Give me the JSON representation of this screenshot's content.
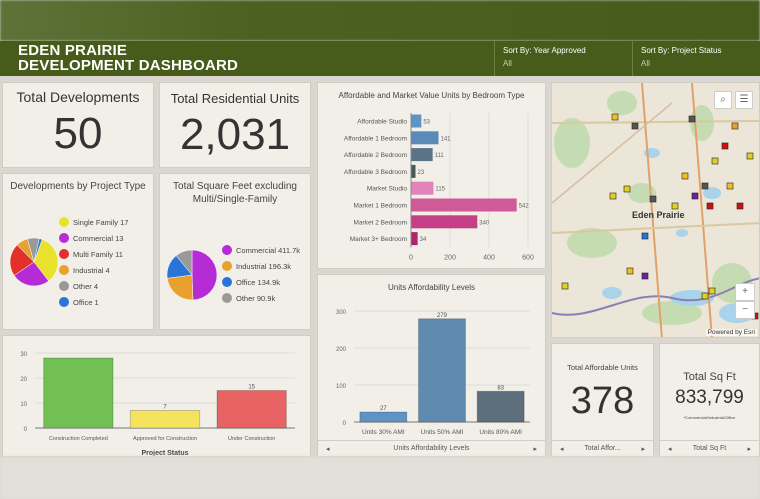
{
  "header": {
    "title_line1": "EDEN PRAIRIE",
    "title_line2": "DEVELOPMENT DASHBOARD",
    "filters": [
      {
        "label": "Sort By: Year Approved",
        "value": "All"
      },
      {
        "label": "Sort By: Project Status",
        "value": "All"
      }
    ]
  },
  "kpis": {
    "total_developments": {
      "title": "Total Developments",
      "value": "50"
    },
    "total_residential": {
      "title": "Total Residential Units",
      "value": "2,031"
    },
    "total_affordable": {
      "title": "Total Affordable Units",
      "value": "378",
      "footer": "Total Affor..."
    },
    "total_sqft": {
      "title": "Total Sq Ft",
      "value": "833,799",
      "note": "*Commercial/Industrial/Office",
      "footer": "Total Sq Ft"
    }
  },
  "map": {
    "attribution": "Powered by Esri",
    "city_label": "Eden Prairie",
    "zoom_in": "+",
    "zoom_out": "−",
    "icons": [
      "search-icon",
      "list-icon"
    ]
  },
  "chart_data": [
    {
      "type": "pie",
      "title": "Developments by Project Type",
      "categories": [
        "Single Family",
        "Commercial",
        "Multi Family",
        "Industrial",
        "Other",
        "Office"
      ],
      "values": [
        17,
        13,
        11,
        4,
        4,
        1
      ],
      "colors": [
        "#e8e22c",
        "#b52bd6",
        "#e3302a",
        "#e9a02c",
        "#999999",
        "#2a73d9"
      ],
      "legend": "right"
    },
    {
      "type": "pie",
      "title": "Total Square Feet excluding Multi/Single-Family",
      "categories": [
        "Commercial",
        "Industrial",
        "Office",
        "Other"
      ],
      "values": [
        411.7,
        196.3,
        134.9,
        90.9
      ],
      "labels": [
        "411.7k",
        "196.3k",
        "134.9k",
        "90.9k"
      ],
      "colors": [
        "#b52bd6",
        "#e9a02c",
        "#2a73d9",
        "#999999"
      ],
      "legend": "right"
    },
    {
      "type": "bar",
      "orientation": "horizontal",
      "title": "Affordable and Market Value Units by Bedroom Type",
      "categories": [
        "Affordable Studio",
        "Affordable 1 Bedroom",
        "Affordable 2 Bedroom",
        "Affordable 3 Bedroom",
        "Market Studio",
        "Market 1 Bedroom",
        "Market 2 Bedroom",
        "Market 3+ Bedroom"
      ],
      "values": [
        53,
        141,
        111,
        23,
        115,
        542,
        340,
        34
      ],
      "colors": [
        "#5f93c4",
        "#5a8ab8",
        "#5b7386",
        "#4a5a55",
        "#e083b8",
        "#d05a98",
        "#c43f85",
        "#b0246b"
      ],
      "xlim": [
        0,
        600
      ],
      "xticks": [
        0,
        200,
        400,
        600
      ],
      "grid": true
    },
    {
      "type": "bar",
      "title": "Units Affordability Levels",
      "categories": [
        "Units 30% AMI",
        "Units 50% AMI",
        "Units 80% AMI"
      ],
      "values": [
        27,
        279,
        83
      ],
      "colors": [
        "#5f93c4",
        "#5f8bb0",
        "#5d6f7c"
      ],
      "ylim": [
        0,
        300
      ],
      "yticks": [
        0,
        100,
        200,
        300
      ],
      "grid": true,
      "footer": "Units Affordability Levels"
    },
    {
      "type": "bar",
      "categories": [
        "Construction Completed",
        "Approved for Construction",
        "Under Construction"
      ],
      "values": [
        28,
        7,
        15
      ],
      "data_labels": [
        "",
        "7",
        "15"
      ],
      "colors": [
        "#72bf55",
        "#f5e35e",
        "#e86464"
      ],
      "ylim": [
        0,
        30
      ],
      "yticks": [
        0,
        10,
        20,
        30
      ],
      "xlabel": "Project Status",
      "grid": true
    }
  ]
}
